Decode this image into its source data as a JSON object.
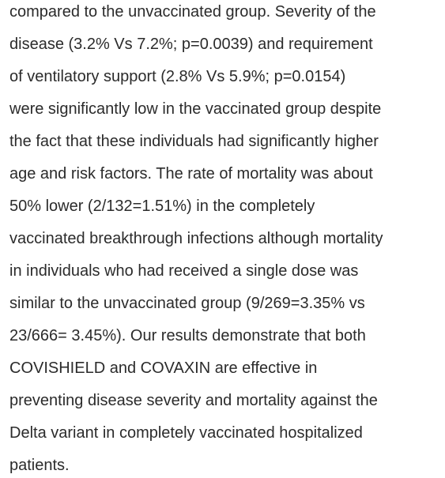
{
  "paragraph": {
    "lines": [
      "compared to the unvaccinated group. Severity of the",
      "disease (3.2% Vs 7.2%; p=0.0039) and requirement",
      "of ventilatory support (2.8% Vs 5.9%; p=0.0154)",
      "were significantly low in the vaccinated group despite",
      "the fact that these individuals had significantly higher",
      "age and risk factors. The rate of mortality was about",
      "50% lower (2/132=1.51%) in the completely",
      "vaccinated breakthrough infections although mortality",
      "in individuals who had received a single dose was",
      "similar to the unvaccinated group (9/269=3.35% vs",
      "23/666= 3.45%). Our results demonstrate that both",
      "COVISHIELD and COVAXIN are effective in",
      "preventing disease severity and mortality against the",
      "Delta variant in completely vaccinated hospitalized",
      "patients."
    ]
  }
}
